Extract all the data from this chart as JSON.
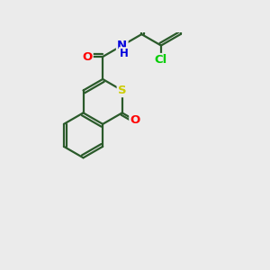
{
  "bg_color": "#ebebeb",
  "bond_color": "#2a5a2a",
  "bond_width": 1.6,
  "atom_colors": {
    "S": "#cccc00",
    "O": "#ff0000",
    "N": "#0000dd",
    "Cl": "#00cc00"
  },
  "font_size": 9.5,
  "fig_size": [
    3.0,
    3.0
  ],
  "dpi": 100,
  "xlim": [
    0,
    10
  ],
  "ylim": [
    0,
    10
  ]
}
